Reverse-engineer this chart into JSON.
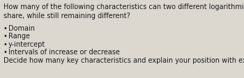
{
  "background_color": "#dcd8d0",
  "title_text": "How many of the following characteristics can two different logarithmic functions\nshare, while still remaining different?",
  "bullet_items": [
    "Domain",
    "Range",
    "y-intercept",
    "Intervals of increase or decrease"
  ],
  "footer_text": "Decide how many key characteristics and explain your position with examples.",
  "title_fontsize": 7.0,
  "bullet_fontsize": 7.0,
  "footer_fontsize": 7.0,
  "text_color": "#1a1a1a",
  "bullet_char": "•"
}
